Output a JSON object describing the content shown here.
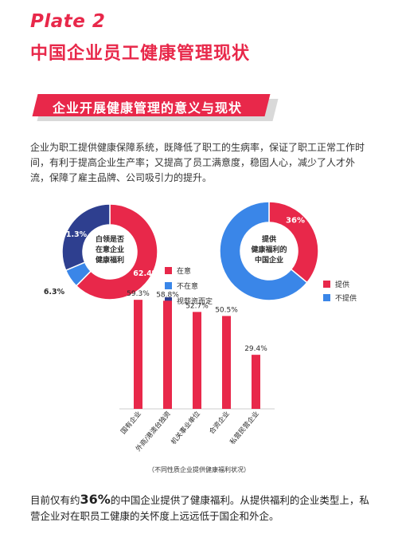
{
  "header": {
    "plate_label": "Plate 2",
    "title": "中国企业员工健康管理现状"
  },
  "section": {
    "banner": "企业开展健康管理的意义与现状"
  },
  "intro_text": "企业为职工提供健康保障系统，既降低了职工的生病率，保证了职工正常工作时间，有利于提高企业生产率；又提高了员工满意度，稳固人心，减少了人才外流，保障了雇主品牌、公司吸引力的提升。",
  "colors": {
    "accent": "#e8284a",
    "blue": "#3a86e8",
    "navy": "#2e3f8f",
    "banner_shadow": "#d9d9d9"
  },
  "chart_data": [
    {
      "type": "pie",
      "center_label": [
        "白领是否",
        "在意企业",
        "健康福利"
      ],
      "slices": [
        {
          "label": "在意",
          "value": 62.4,
          "value_label": "62.4%",
          "color": "#e8284a"
        },
        {
          "label": "不在意",
          "value": 6.3,
          "value_label": "6.3%",
          "color": "#3a86e8"
        },
        {
          "label": "视薪资而定",
          "value": 31.3,
          "value_label": "31.3%",
          "color": "#2e3f8f"
        }
      ]
    },
    {
      "type": "pie",
      "center_label": [
        "提供",
        "健康福利的",
        "中国企业"
      ],
      "slices": [
        {
          "label": "提供",
          "value": 36,
          "value_label": "36%",
          "color": "#e8284a"
        },
        {
          "label": "不提供",
          "value": 64,
          "value_label": "",
          "color": "#3a86e8"
        }
      ]
    },
    {
      "type": "bar",
      "categories": [
        "国有企业",
        "外商/港澳台独资",
        "机关事业单位",
        "合资企业",
        "私营民营企业"
      ],
      "values": [
        59.3,
        58.8,
        52.7,
        50.5,
        29.4
      ],
      "value_labels": [
        "59.3%",
        "58.8%",
        "52.7%",
        "50.5%",
        "29.4%"
      ],
      "title": "（不同性质企业提供健康福利状况）",
      "color": "#e8284a",
      "ylim": [
        0,
        100
      ]
    }
  ],
  "conclusion": {
    "pre": "目前仅有约",
    "highlight": "36%",
    "post": "的中国企业提供了健康福利。从提供福利的企业类型上，私营企业对在职员工健康的关怀度上远远低于国企和外企。"
  }
}
